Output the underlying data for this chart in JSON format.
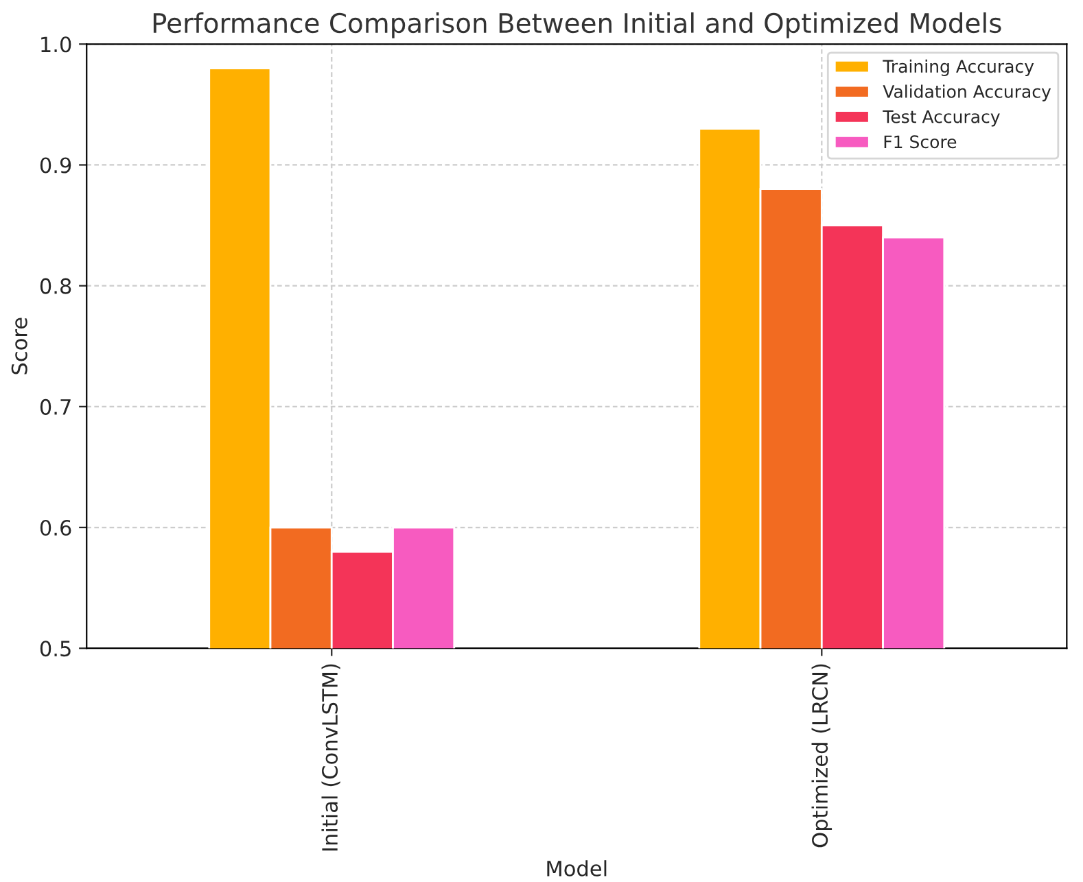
{
  "chart_data": {
    "type": "bar",
    "title": "Performance Comparison Between Initial and Optimized Models",
    "xlabel": "Model",
    "ylabel": "Score",
    "categories": [
      "Initial (ConvLSTM)",
      "Optimized (LRCN)"
    ],
    "series": [
      {
        "name": "Training Accuracy",
        "color": "#ffb000",
        "values": [
          0.98,
          0.93
        ]
      },
      {
        "name": "Validation Accuracy",
        "color": "#f26b21",
        "values": [
          0.6,
          0.88
        ]
      },
      {
        "name": "Test Accuracy",
        "color": "#f43458",
        "values": [
          0.58,
          0.85
        ]
      },
      {
        "name": "F1 Score",
        "color": "#f75bc0",
        "values": [
          0.6,
          0.84
        ]
      }
    ],
    "ylim": [
      0.5,
      1.0
    ],
    "yticks": [
      0.5,
      0.6,
      0.7,
      0.8,
      0.9,
      {
        "value": 1.0,
        "label": "1.0"
      }
    ],
    "grid": true,
    "legend": "top right"
  }
}
